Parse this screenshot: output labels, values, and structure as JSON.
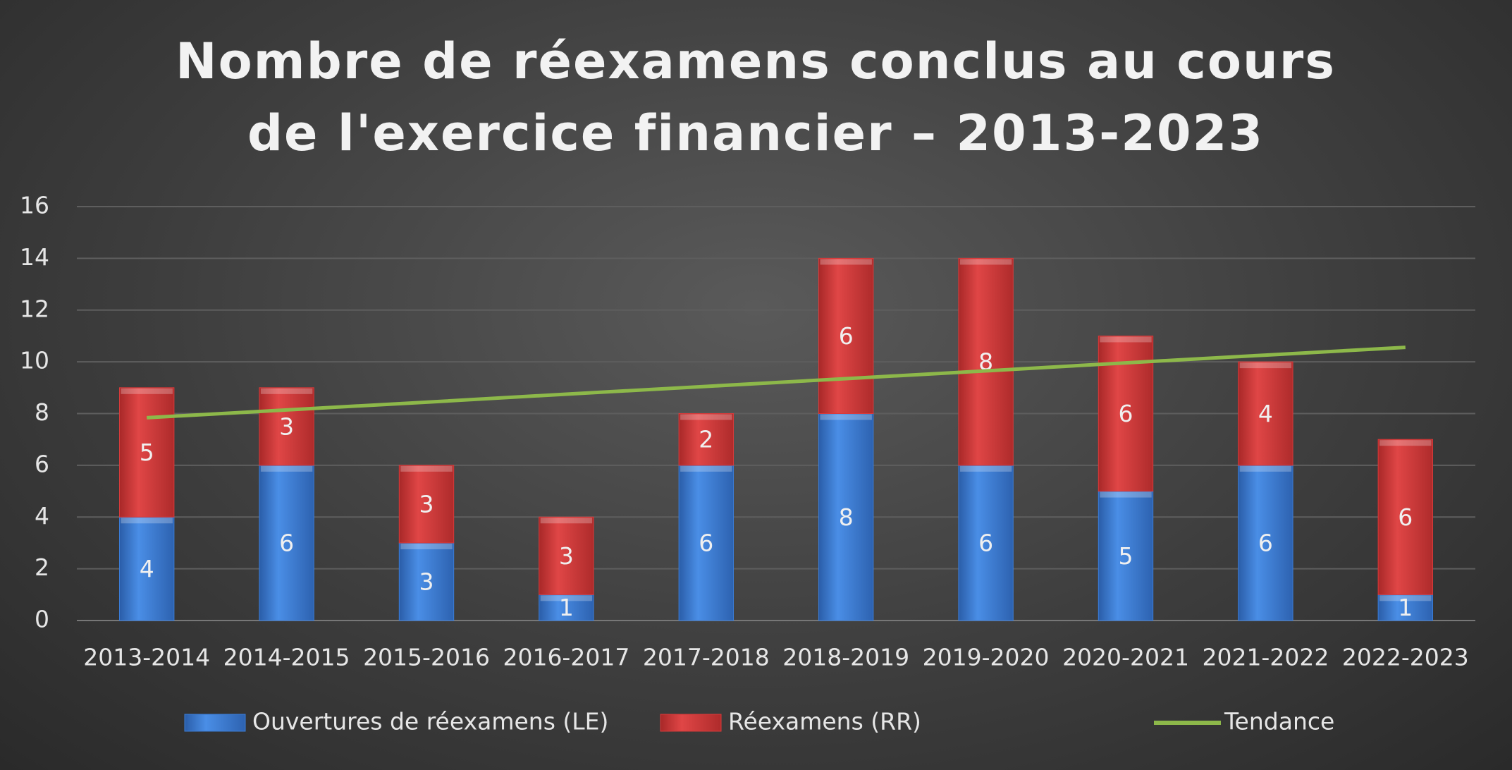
{
  "chart_data": {
    "type": "bar",
    "stacked": true,
    "title": "Nombre de réexamens conclus au cours de l'exercice financier – 2013-2023",
    "categories": [
      "2013-2014",
      "2014-2015",
      "2015-2016",
      "2016-2017",
      "2017-2018",
      "2018-2019",
      "2019-2020",
      "2020-2021",
      "2021-2022",
      "2022-2023"
    ],
    "series": [
      {
        "name": "Ouvertures de réexamens (LE)",
        "type": "bar",
        "color": "#3b7dd8",
        "values": [
          4,
          6,
          3,
          1,
          6,
          8,
          6,
          5,
          6,
          1
        ]
      },
      {
        "name": "Réexamens (RR)",
        "type": "bar",
        "color": "#d93a3a",
        "values": [
          5,
          3,
          3,
          3,
          2,
          6,
          8,
          6,
          4,
          6
        ]
      },
      {
        "name": "Tendance",
        "type": "line",
        "color": "#8db84a",
        "values": [
          7.84,
          8.14,
          8.44,
          8.75,
          9.05,
          9.35,
          9.65,
          9.96,
          10.26,
          10.56
        ]
      }
    ],
    "ylim": [
      0,
      16
    ],
    "yticks": [
      0,
      2,
      4,
      6,
      8,
      10,
      12,
      14,
      16
    ],
    "grid": true,
    "legend": "bottom"
  }
}
